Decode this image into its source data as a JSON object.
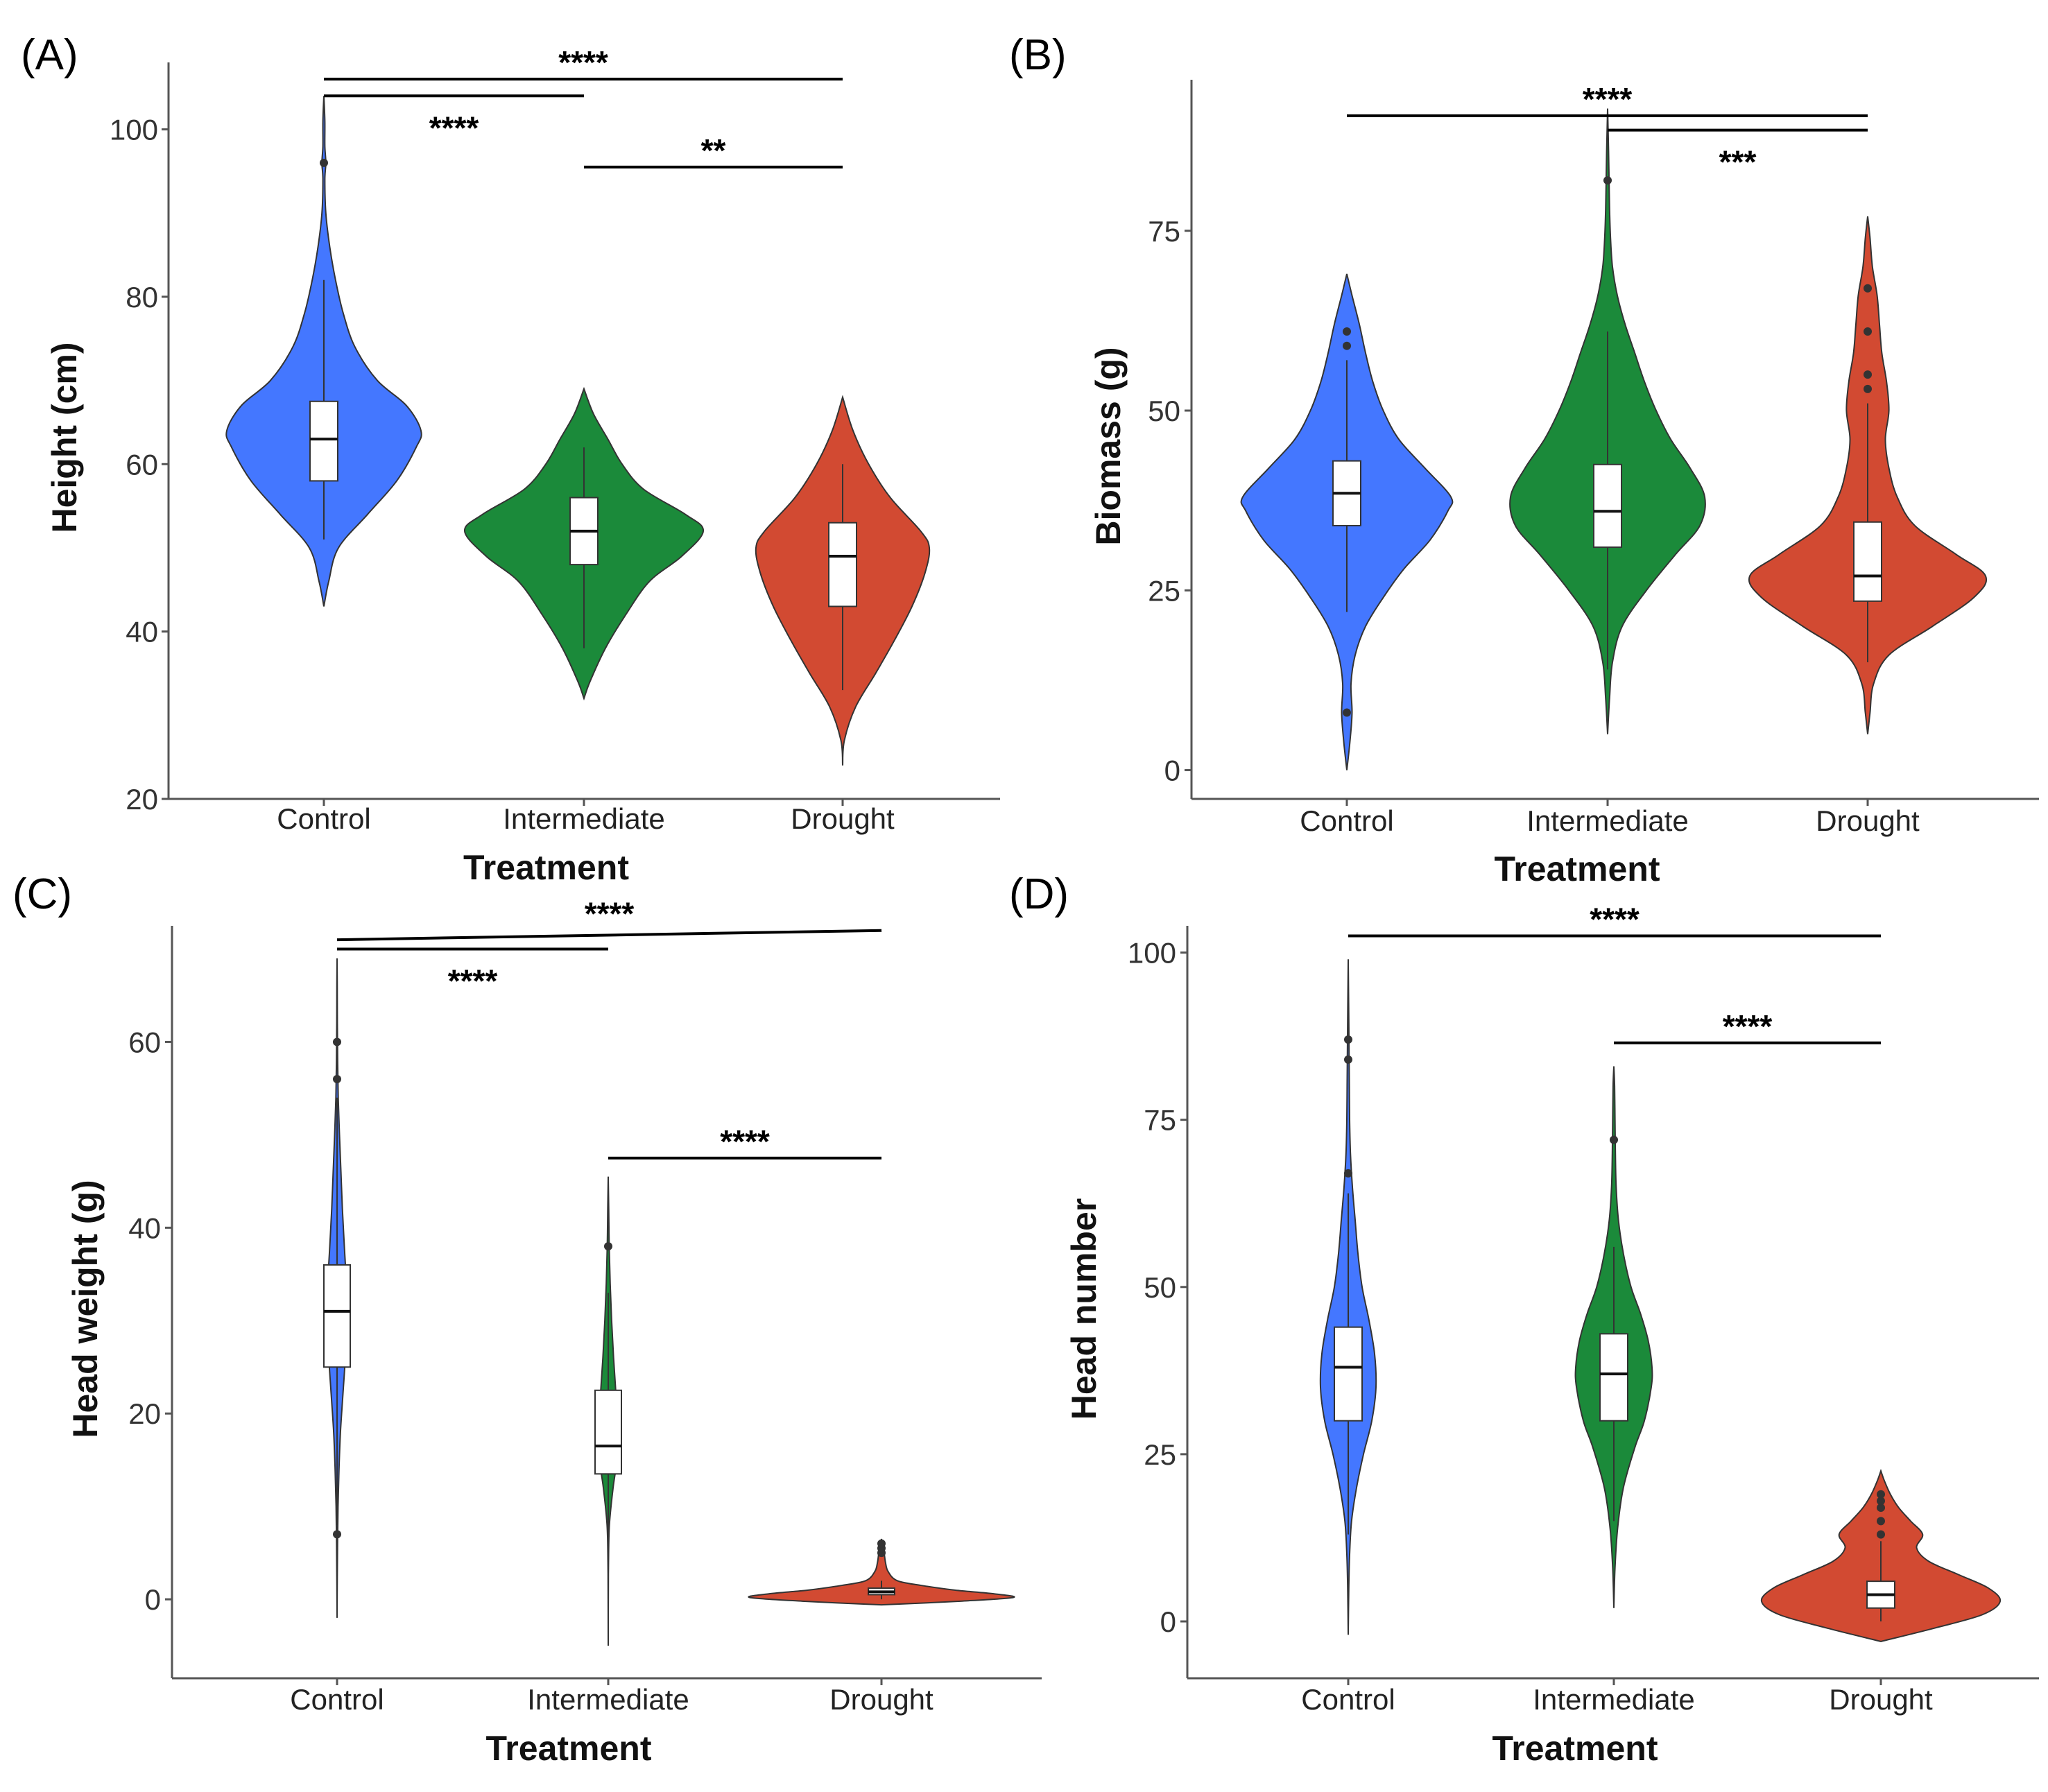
{
  "figure": {
    "colors": {
      "Control": "#4477ff",
      "Intermediate": "#1b8a3a",
      "Drought": "#d24a32",
      "axis": "#555555",
      "line": "#000000",
      "box": "#ffffff"
    }
  },
  "chart_data": [
    {
      "id": "A",
      "type": "violin",
      "panel_label": "(A)",
      "xlabel": "Treatment",
      "ylabel": "Height (cm)",
      "categories": [
        "Control",
        "Intermediate",
        "Drought"
      ],
      "ylim": [
        20,
        108
      ],
      "yticks": [
        20,
        40,
        60,
        80,
        100
      ],
      "series": [
        {
          "name": "Control",
          "q1": 58,
          "median": 63,
          "q3": 67.5,
          "whisker_low": 51,
          "whisker_high": 82,
          "outliers": [
            96
          ],
          "violin": {
            "y": [
              43,
              46,
              50,
              54,
              58,
              62,
              64,
              67,
              70,
              74,
              78,
              82,
              86,
              90,
              94,
              96,
              98,
              101,
              104
            ],
            "w": [
              0,
              0.05,
              0.15,
              0.45,
              0.75,
              0.95,
              1.0,
              0.85,
              0.55,
              0.32,
              0.2,
              0.12,
              0.06,
              0.02,
              0.01,
              0.02,
              0.01,
              0.01,
              0
            ]
          }
        },
        {
          "name": "Intermediate",
          "q1": 48,
          "median": 52,
          "q3": 56,
          "whisker_low": 38,
          "whisker_high": 62,
          "outliers": [],
          "violin": {
            "y": [
              32,
              34,
              38,
              42,
              46,
              49,
              52,
              54,
              57,
              60,
              63,
              66,
              69
            ],
            "w": [
              0,
              0.05,
              0.18,
              0.35,
              0.55,
              0.82,
              1.0,
              0.85,
              0.5,
              0.32,
              0.2,
              0.08,
              0
            ]
          }
        },
        {
          "name": "Drought",
          "q1": 43,
          "median": 49,
          "q3": 53,
          "whisker_low": 33,
          "whisker_high": 60,
          "outliers": [],
          "violin": {
            "y": [
              24,
              27,
              31,
              35,
              39,
              43,
              47,
              50,
              52,
              56,
              60,
              64,
              68
            ],
            "w": [
              0,
              0.02,
              0.15,
              0.38,
              0.6,
              0.8,
              0.95,
              1.0,
              0.9,
              0.55,
              0.3,
              0.12,
              0
            ]
          }
        }
      ],
      "brackets": [
        {
          "from": 0,
          "to": 2,
          "y": 106,
          "label": "****"
        },
        {
          "from": 0,
          "to": 1,
          "y": 104,
          "label": "****"
        },
        {
          "from": 1,
          "to": 2,
          "y": 95.5,
          "label": "**"
        }
      ]
    },
    {
      "id": "B",
      "type": "violin",
      "panel_label": "(B)",
      "xlabel": "Treatment",
      "ylabel": "Biomass (g)",
      "categories": [
        "Control",
        "Intermediate",
        "Drought"
      ],
      "ylim": [
        -4,
        96
      ],
      "yticks": [
        0,
        25,
        50,
        75
      ],
      "series": [
        {
          "name": "Control",
          "q1": 34,
          "median": 38.5,
          "q3": 43,
          "whisker_low": 22,
          "whisker_high": 57,
          "outliers": [
            8,
            59,
            61
          ],
          "violin": {
            "y": [
              0,
              4,
              8,
              12,
              16,
              20,
              24,
              28,
              32,
              36,
              38,
              42,
              46,
              50,
              54,
              58,
              62,
              66,
              69
            ],
            "w": [
              0,
              0.03,
              0.05,
              0.04,
              0.08,
              0.18,
              0.35,
              0.55,
              0.8,
              0.97,
              1.0,
              0.75,
              0.5,
              0.35,
              0.25,
              0.18,
              0.12,
              0.05,
              0
            ]
          }
        },
        {
          "name": "Intermediate",
          "q1": 31,
          "median": 36,
          "q3": 42.5,
          "whisker_low": 14,
          "whisker_high": 61,
          "outliers": [
            82
          ],
          "violin": {
            "y": [
              5,
              10,
              15,
              20,
              25,
              30,
              34,
              38,
              42,
              46,
              50,
              54,
              58,
              62,
              66,
              70,
              74,
              78,
              82,
              86,
              92
            ],
            "w": [
              0,
              0.02,
              0.05,
              0.15,
              0.4,
              0.7,
              0.95,
              1.0,
              0.85,
              0.65,
              0.5,
              0.38,
              0.28,
              0.18,
              0.1,
              0.05,
              0.03,
              0.02,
              0.015,
              0.01,
              0
            ]
          }
        },
        {
          "name": "Drought",
          "q1": 23.5,
          "median": 27,
          "q3": 34.5,
          "whisker_low": 15,
          "whisker_high": 51,
          "outliers": [
            53,
            55,
            61,
            67
          ],
          "violin": {
            "y": [
              5,
              8,
              12,
              16,
              20,
              24,
              27,
              30,
              34,
              38,
              42,
              46,
              50,
              54,
              58,
              62,
              66,
              70,
              74,
              77
            ],
            "w": [
              0,
              0.02,
              0.05,
              0.18,
              0.55,
              0.9,
              1.0,
              0.75,
              0.4,
              0.25,
              0.18,
              0.15,
              0.18,
              0.16,
              0.12,
              0.1,
              0.08,
              0.04,
              0.02,
              0
            ]
          }
        }
      ],
      "brackets": [
        {
          "from": 0,
          "to": 2,
          "y": 91,
          "label": "****"
        },
        {
          "from": 1,
          "to": 2,
          "y": 89,
          "label": "***"
        }
      ]
    },
    {
      "id": "C",
      "type": "violin",
      "panel_label": "(C)",
      "xlabel": "Treatment",
      "ylabel": "Head weight (g)",
      "categories": [
        "Control",
        "Intermediate",
        "Drought"
      ],
      "ylim": [
        -8.5,
        72.5
      ],
      "yticks": [
        0,
        20,
        40,
        60
      ],
      "series": [
        {
          "name": "Control",
          "q1": 25,
          "median": 31,
          "q3": 36,
          "whisker_low": 8,
          "whisker_high": 54,
          "outliers": [
            7,
            56,
            60
          ],
          "violin": {
            "y": [
              -2,
              2,
              6,
              10,
              14,
              18,
              22,
              26,
              30,
              34,
              38,
              42,
              46,
              50,
              54,
              58,
              62,
              66,
              69
            ],
            "w": [
              0,
              0.02,
              0.05,
              0.1,
              0.2,
              0.35,
              0.6,
              0.85,
              1.0,
              0.95,
              0.75,
              0.55,
              0.4,
              0.25,
              0.12,
              0.06,
              0.03,
              0.02,
              0
            ]
          }
        },
        {
          "name": "Intermediate",
          "q1": 13.5,
          "median": 16.5,
          "q3": 22.5,
          "whisker_low": 5,
          "whisker_high": 33,
          "outliers": [
            38
          ],
          "violin": {
            "y": [
              -5,
              0,
              4,
              8,
              12,
              15,
              18,
              22,
              26,
              30,
              34,
              38,
              42,
              45.5
            ],
            "w": [
              0,
              0.01,
              0.03,
              0.12,
              0.5,
              0.9,
              1.0,
              0.8,
              0.55,
              0.35,
              0.2,
              0.1,
              0.05,
              0
            ]
          }
        },
        {
          "name": "Drought",
          "q1": 0.5,
          "median": 0.8,
          "q3": 1.2,
          "whisker_low": 0,
          "whisker_high": 2,
          "outliers": [
            5,
            5.5,
            6
          ],
          "violin": {
            "y": [
              -0.6,
              -0.2,
              0.2,
              0.6,
              1.0,
              1.5,
              2.0,
              3.0,
              4.0,
              5.0,
              6.5
            ],
            "w": [
              0,
              0.6,
              1.0,
              0.85,
              0.55,
              0.3,
              0.12,
              0.05,
              0.03,
              0.02,
              0
            ]
          }
        }
      ],
      "brackets": [
        {
          "from": 0,
          "to": 2,
          "y": 71,
          "y2": 72,
          "label": "****"
        },
        {
          "from": 0,
          "to": 1,
          "y": 70,
          "label": "****"
        },
        {
          "from": 1,
          "to": 2,
          "y": 47.5,
          "label": "****"
        }
      ]
    },
    {
      "id": "D",
      "type": "violin",
      "panel_label": "(D)",
      "xlabel": "Treatment",
      "ylabel": "Head number",
      "categories": [
        "Control",
        "Intermediate",
        "Drought"
      ],
      "ylim": [
        -8.5,
        104
      ],
      "yticks": [
        0,
        25,
        50,
        75,
        100
      ],
      "series": [
        {
          "name": "Control",
          "q1": 30,
          "median": 38,
          "q3": 44,
          "whisker_low": 13,
          "whisker_high": 64,
          "outliers": [
            67,
            84,
            87
          ],
          "violin": {
            "y": [
              -2,
              5,
              10,
              15,
              20,
              25,
              30,
              35,
              40,
              45,
              50,
              55,
              60,
              65,
              70,
              75,
              80,
              85,
              90,
              99
            ],
            "w": [
              0,
              0.02,
              0.05,
              0.12,
              0.3,
              0.55,
              0.85,
              1.0,
              0.95,
              0.75,
              0.5,
              0.35,
              0.25,
              0.15,
              0.08,
              0.05,
              0.04,
              0.03,
              0.02,
              0
            ]
          }
        },
        {
          "name": "Intermediate",
          "q1": 30,
          "median": 37,
          "q3": 43,
          "whisker_low": 15,
          "whisker_high": 56,
          "outliers": [
            72
          ],
          "violin": {
            "y": [
              2,
              8,
              14,
              20,
              26,
              30,
              35,
              38,
              42,
              46,
              50,
              55,
              60,
              65,
              70,
              75,
              80,
              83
            ],
            "w": [
              0,
              0.03,
              0.1,
              0.25,
              0.55,
              0.8,
              0.98,
              1.0,
              0.9,
              0.7,
              0.45,
              0.25,
              0.12,
              0.06,
              0.04,
              0.03,
              0.02,
              0
            ]
          }
        },
        {
          "name": "Drought",
          "q1": 2,
          "median": 4,
          "q3": 6,
          "whisker_low": 0,
          "whisker_high": 12,
          "outliers": [
            13,
            15,
            17,
            18,
            19
          ],
          "violin": {
            "y": [
              -3,
              -1,
              1,
              3,
              5,
              7,
              9,
              11,
              13,
              15,
              17,
              19,
              21,
              22.5
            ],
            "w": [
              0,
              0.45,
              0.85,
              1.0,
              0.9,
              0.65,
              0.4,
              0.3,
              0.35,
              0.25,
              0.15,
              0.08,
              0.03,
              0
            ]
          }
        }
      ],
      "brackets": [
        {
          "from": 0,
          "to": 2,
          "y": 102.5,
          "label": "****"
        },
        {
          "from": 1,
          "to": 2,
          "y": 86.5,
          "label": "****"
        }
      ]
    }
  ]
}
